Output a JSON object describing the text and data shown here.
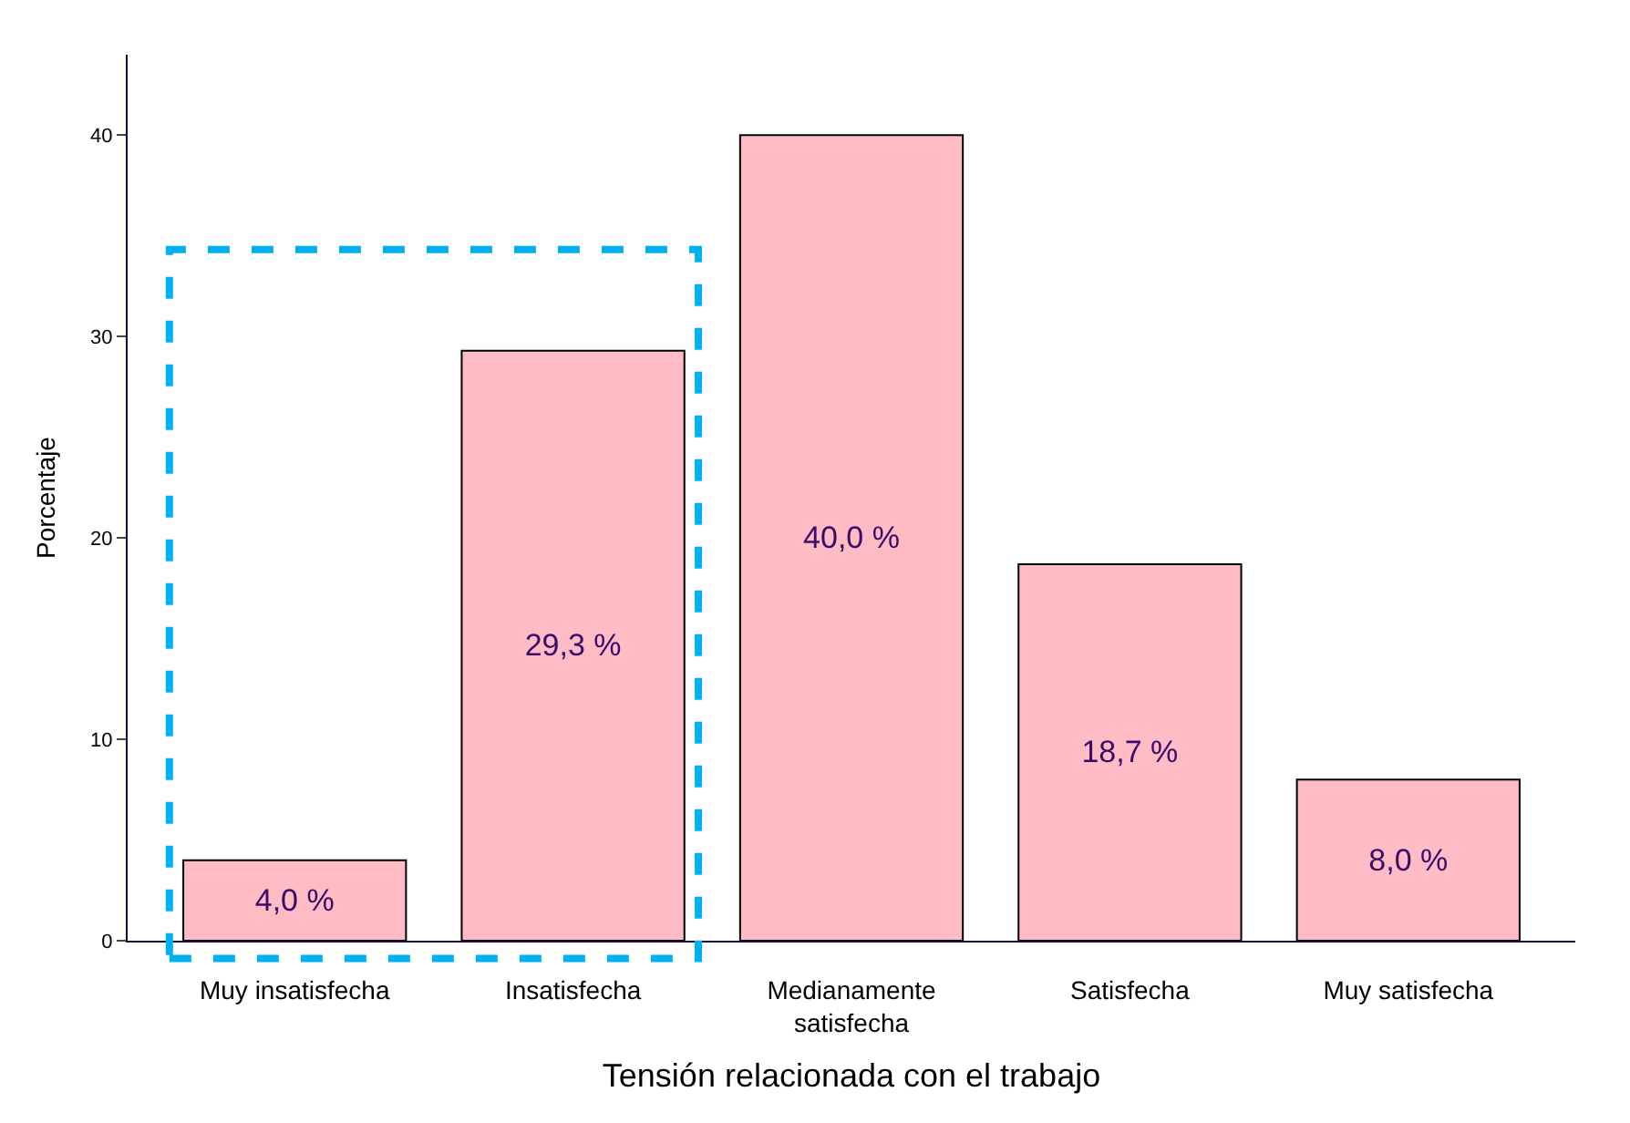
{
  "chart_data": {
    "type": "bar",
    "xlabel": "Tensión relacionada con el trabajo",
    "ylabel": "Porcentaje",
    "categories": [
      "Muy insatisfecha",
      "Insatisfecha",
      "Medianamente satisfecha",
      "Satisfecha",
      "Muy satisfecha"
    ],
    "values": [
      4.0,
      29.3,
      40.0,
      18.7,
      8.0
    ],
    "value_labels": [
      "4,0 %",
      "29,3 %",
      "40,0 %",
      "18,7 %",
      "8,0 %"
    ],
    "color": "#ffbcc4",
    "ylim": [
      0,
      44
    ],
    "yticks": [
      0,
      10,
      20,
      30,
      40
    ]
  }
}
